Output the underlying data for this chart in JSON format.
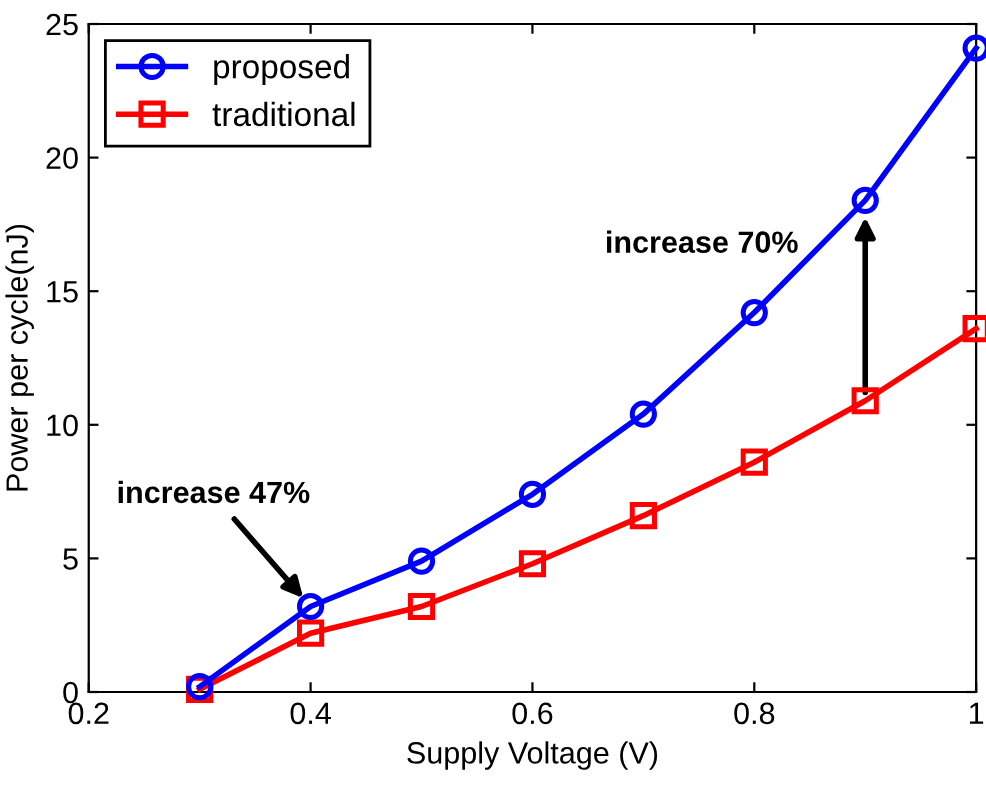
{
  "chart_data": {
    "type": "line",
    "xlabel": "Supply Voltage (V)",
    "ylabel": "Power per cycle(nJ)",
    "x": [
      0.3,
      0.4,
      0.5,
      0.6,
      0.7,
      0.8,
      0.9,
      1.0
    ],
    "series": [
      {
        "name": "proposed",
        "color": "#0000ff",
        "marker": "circle",
        "values": [
          0.2,
          3.2,
          4.9,
          7.4,
          10.4,
          14.2,
          18.4,
          24.1
        ]
      },
      {
        "name": "traditional",
        "color": "#ff0000",
        "marker": "square",
        "values": [
          0.1,
          2.2,
          3.2,
          4.8,
          6.6,
          8.6,
          10.9,
          13.6
        ]
      }
    ],
    "annotations": [
      {
        "text": "increase 47%",
        "x": 0.4,
        "y": 3.2
      },
      {
        "text": "increase 70%",
        "x": 0.9,
        "y": 18.4
      }
    ],
    "xlim": [
      0.2,
      1
    ],
    "ylim": [
      0,
      25
    ],
    "xticks": [
      0.2,
      0.4,
      0.6,
      0.8,
      {
        "value": 1,
        "label": "1"
      }
    ],
    "yticks": [
      0,
      5,
      10,
      15,
      20,
      25
    ],
    "grid": false,
    "legend": "top left",
    "line_style": "solid"
  }
}
